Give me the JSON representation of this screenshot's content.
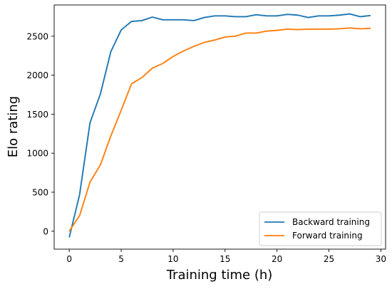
{
  "chart_data": {
    "type": "line",
    "title": "",
    "xlabel": "Training time (h)",
    "ylabel": "Elo rating",
    "xlim": [
      -1.45,
      30.45
    ],
    "ylim": [
      -230,
      2900
    ],
    "xticks": [
      0,
      5,
      10,
      15,
      20,
      25,
      30
    ],
    "yticks": [
      0,
      500,
      1000,
      1500,
      2000,
      2500
    ],
    "grid": false,
    "legend_position": "lower-right",
    "series": [
      {
        "name": "Backward training",
        "color": "#1f77b4",
        "x": [
          0,
          1,
          2,
          3,
          4,
          5,
          6,
          7,
          8,
          9,
          10,
          11,
          12,
          13,
          14,
          15,
          16,
          17,
          18,
          19,
          20,
          21,
          22,
          23,
          24,
          25,
          26,
          27,
          28,
          29
        ],
        "y": [
          -80,
          470,
          1390,
          1760,
          2300,
          2580,
          2690,
          2700,
          2745,
          2710,
          2710,
          2710,
          2700,
          2740,
          2760,
          2760,
          2750,
          2750,
          2775,
          2760,
          2760,
          2780,
          2770,
          2740,
          2760,
          2760,
          2770,
          2785,
          2750,
          2765
        ]
      },
      {
        "name": "Forward training",
        "color": "#ff7f0e",
        "x": [
          0,
          1,
          2,
          3,
          4,
          5,
          6,
          7,
          8,
          9,
          10,
          11,
          12,
          13,
          14,
          15,
          16,
          17,
          18,
          19,
          20,
          21,
          22,
          23,
          24,
          25,
          26,
          27,
          28,
          29
        ],
        "y": [
          0,
          200,
          630,
          850,
          1220,
          1550,
          1890,
          1970,
          2090,
          2150,
          2240,
          2310,
          2370,
          2420,
          2450,
          2490,
          2500,
          2540,
          2540,
          2565,
          2575,
          2590,
          2585,
          2590,
          2590,
          2590,
          2595,
          2605,
          2595,
          2600
        ]
      }
    ]
  }
}
